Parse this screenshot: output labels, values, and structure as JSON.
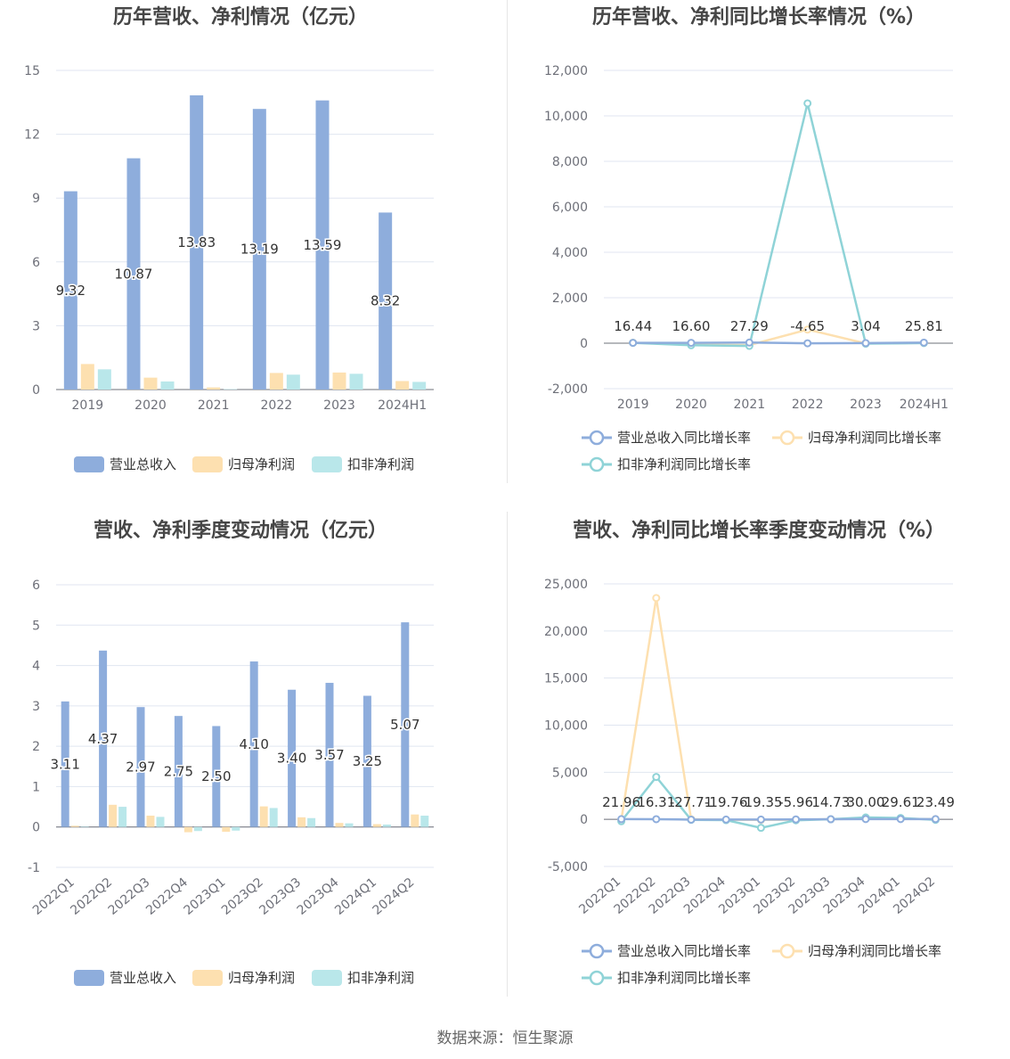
{
  "source_label": "数据来源：恒生聚源",
  "colors": {
    "revenue": "#8eaddc",
    "netprofit": "#fde0b0",
    "deducted": "#99dde0",
    "deducted_bar": "#b9e7ea",
    "deducted_line": "#8fd3d7"
  },
  "chart_data": [
    {
      "type": "bar",
      "title": "历年营收、净利情况（亿元）",
      "categories": [
        "2019",
        "2020",
        "2021",
        "2022",
        "2023",
        "2024H1"
      ],
      "ylim": [
        0,
        15
      ],
      "yticks": [
        0,
        3,
        6,
        9,
        12,
        15
      ],
      "legend_position": "bottom",
      "series": [
        {
          "name": "营业总收入",
          "values": [
            9.32,
            10.87,
            13.83,
            13.19,
            13.59,
            8.32
          ],
          "labels": [
            "9.32",
            "10.87",
            "13.83",
            "13.19",
            "13.59",
            "8.32"
          ]
        },
        {
          "name": "归母净利润",
          "values": [
            1.2,
            0.56,
            0.1,
            0.78,
            0.8,
            0.4
          ]
        },
        {
          "name": "扣非净利润",
          "values": [
            0.95,
            0.38,
            0.02,
            0.7,
            0.74,
            0.36
          ]
        }
      ]
    },
    {
      "type": "line",
      "title": "历年营收、净利同比增长率情况（%）",
      "categories": [
        "2019",
        "2020",
        "2021",
        "2022",
        "2023",
        "2024H1"
      ],
      "ylim": [
        -2000,
        12000
      ],
      "yticks": [
        -2000,
        0,
        2000,
        4000,
        6000,
        8000,
        10000,
        12000
      ],
      "ytick_labels": [
        "-2,000",
        "0",
        "2,000",
        "4,000",
        "6,000",
        "8,000",
        "10,000",
        "12,000"
      ],
      "legend_position": "bottom",
      "series": [
        {
          "name": "营业总收入同比增长率",
          "values": [
            16.44,
            16.6,
            27.29,
            -4.65,
            3.04,
            25.81
          ],
          "labels": [
            "16.44",
            "16.60",
            "27.29",
            "-4.65",
            "3.04",
            "25.81"
          ]
        },
        {
          "name": "归母净利润同比增长率",
          "values": [
            20,
            -60,
            -85,
            600,
            -10,
            10
          ]
        },
        {
          "name": "扣非净利润同比增长率",
          "values": [
            15,
            -90,
            -120,
            10550,
            -20,
            5
          ]
        }
      ]
    },
    {
      "type": "bar",
      "title": "营收、净利季度变动情况（亿元）",
      "categories": [
        "2022Q1",
        "2022Q2",
        "2022Q3",
        "2022Q4",
        "2023Q1",
        "2023Q2",
        "2023Q3",
        "2023Q4",
        "2024Q1",
        "2024Q2"
      ],
      "ylim": [
        -1,
        6
      ],
      "yticks": [
        -1,
        0,
        1,
        2,
        3,
        4,
        5,
        6
      ],
      "legend_position": "bottom",
      "series": [
        {
          "name": "营业总收入",
          "values": [
            3.11,
            4.37,
            2.97,
            2.75,
            2.5,
            4.1,
            3.4,
            3.57,
            3.25,
            5.07
          ],
          "labels": [
            "3.11",
            "4.37",
            "2.97",
            "2.75",
            "2.50",
            "4.10",
            "3.40",
            "3.57",
            "3.25",
            "5.07"
          ]
        },
        {
          "name": "归母净利润",
          "values": [
            0.03,
            0.55,
            0.28,
            -0.13,
            -0.12,
            0.51,
            0.24,
            0.1,
            0.07,
            0.31
          ]
        },
        {
          "name": "扣非净利润",
          "values": [
            0.01,
            0.5,
            0.25,
            -0.1,
            -0.09,
            0.47,
            0.22,
            0.09,
            0.06,
            0.28
          ]
        }
      ]
    },
    {
      "type": "line",
      "title": "营收、净利同比增长率季度变动情况（%）",
      "categories": [
        "2022Q1",
        "2022Q2",
        "2022Q3",
        "2022Q4",
        "2023Q1",
        "2023Q2",
        "2023Q3",
        "2023Q4",
        "2024Q1",
        "2024Q2"
      ],
      "ylim": [
        -5000,
        25000
      ],
      "yticks": [
        -5000,
        0,
        5000,
        10000,
        15000,
        20000,
        25000
      ],
      "ytick_labels": [
        "-5,000",
        "0",
        "5,000",
        "10,000",
        "15,000",
        "20,000",
        "25,000"
      ],
      "legend_position": "bottom",
      "series": [
        {
          "name": "营业总收入同比增长率",
          "values": [
            21.96,
            16.31,
            -27.71,
            -19.76,
            -19.35,
            -5.96,
            14.73,
            30.0,
            29.61,
            23.49
          ],
          "labels": [
            "21.96",
            "16.31",
            "-27.71",
            "-19.76",
            "-19.35",
            "-5.96",
            "14.73",
            "30.00",
            "29.61",
            "23.49"
          ]
        },
        {
          "name": "归母净利润同比增长率",
          "values": [
            -50,
            23500,
            10,
            -50,
            -60,
            -40,
            20,
            80,
            60,
            30
          ]
        },
        {
          "name": "扣非净利润同比增长率",
          "values": [
            -200,
            4500,
            -50,
            -80,
            -900,
            -100,
            10,
            200,
            150,
            -50
          ]
        }
      ]
    }
  ]
}
